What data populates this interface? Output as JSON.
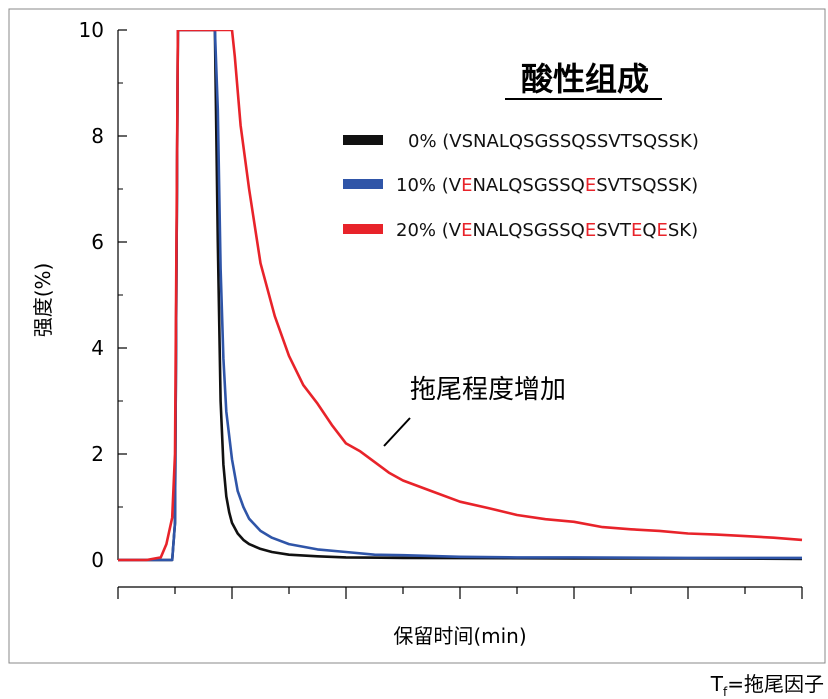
{
  "chart_data": {
    "type": "line",
    "title": "",
    "xlabel": "保留时间(min)",
    "ylabel": "强度(%)",
    "ylim": [
      0,
      10
    ],
    "xlim": [
      0,
      12
    ],
    "yticks": [
      "0",
      "2",
      "4",
      "6",
      "8",
      "10"
    ],
    "xticks_labeled": false,
    "grid": false,
    "legend": {
      "title": "酸性组成",
      "placement": "top-right",
      "entries": [
        {
          "pct": "0%",
          "pre": " (V",
          "parts": [
            {
              "t": "SNALQSGSSQSSVTSQSSK)",
              "hl": false
            }
          ],
          "color": "#111111"
        },
        {
          "pct": "10%",
          "pre": " (V",
          "parts": [
            {
              "t": "E",
              "hl": true
            },
            {
              "t": "NALQSGSSQ",
              "hl": false
            },
            {
              "t": "E",
              "hl": true
            },
            {
              "t": "SVTSQSSK)",
              "hl": false
            }
          ],
          "color": "#2f55a8"
        },
        {
          "pct": "20%",
          "pre": " (V",
          "parts": [
            {
              "t": "E",
              "hl": true
            },
            {
              "t": "NALQSGSSQ",
              "hl": false
            },
            {
              "t": "E",
              "hl": true
            },
            {
              "t": "SVT",
              "hl": false
            },
            {
              "t": "E",
              "hl": true
            },
            {
              "t": "Q",
              "hl": false
            },
            {
              "t": "E",
              "hl": true
            },
            {
              "t": "SK)",
              "hl": false
            }
          ],
          "color": "#e8232a"
        }
      ]
    },
    "highlight_color": "#e8232a",
    "annotation": "拖尾程度增加",
    "series": [
      {
        "name": "0%",
        "color": "#111111",
        "points": [
          [
            0,
            0
          ],
          [
            0.95,
            0
          ],
          [
            1.0,
            0.7
          ],
          [
            1.05,
            10
          ],
          [
            1.7,
            10
          ],
          [
            1.75,
            6.0
          ],
          [
            1.8,
            3.0
          ],
          [
            1.85,
            1.8
          ],
          [
            1.9,
            1.2
          ],
          [
            1.95,
            0.9
          ],
          [
            2.0,
            0.7
          ],
          [
            2.1,
            0.5
          ],
          [
            2.2,
            0.38
          ],
          [
            2.3,
            0.3
          ],
          [
            2.5,
            0.21
          ],
          [
            2.7,
            0.15
          ],
          [
            3.0,
            0.1
          ],
          [
            3.5,
            0.07
          ],
          [
            4.0,
            0.05
          ],
          [
            5.0,
            0.04
          ],
          [
            6,
            0.035
          ],
          [
            8,
            0.03
          ],
          [
            10,
            0.03
          ],
          [
            12,
            0.02
          ]
        ]
      },
      {
        "name": "10%",
        "color": "#2f55a8",
        "points": [
          [
            0,
            0
          ],
          [
            0.95,
            0
          ],
          [
            1.0,
            0.7
          ],
          [
            1.05,
            10
          ],
          [
            1.7,
            10
          ],
          [
            1.75,
            8.5
          ],
          [
            1.8,
            5.5
          ],
          [
            1.85,
            3.8
          ],
          [
            1.9,
            2.8
          ],
          [
            2.0,
            1.9
          ],
          [
            2.1,
            1.3
          ],
          [
            2.2,
            1.0
          ],
          [
            2.3,
            0.78
          ],
          [
            2.5,
            0.55
          ],
          [
            2.7,
            0.42
          ],
          [
            3.0,
            0.3
          ],
          [
            3.5,
            0.2
          ],
          [
            4.0,
            0.15
          ],
          [
            4.5,
            0.1
          ],
          [
            5.0,
            0.09
          ],
          [
            6.0,
            0.06
          ],
          [
            7.0,
            0.05
          ],
          [
            8.0,
            0.05
          ],
          [
            10.0,
            0.04
          ],
          [
            12,
            0.04
          ]
        ]
      },
      {
        "name": "20%",
        "color": "#e8232a",
        "points": [
          [
            0,
            0
          ],
          [
            0.5,
            0
          ],
          [
            0.75,
            0.05
          ],
          [
            0.85,
            0.3
          ],
          [
            0.95,
            0.8
          ],
          [
            1.0,
            2.0
          ],
          [
            1.05,
            10
          ],
          [
            2.0,
            10
          ],
          [
            2.05,
            9.5
          ],
          [
            2.15,
            8.2
          ],
          [
            2.3,
            7.0
          ],
          [
            2.5,
            5.6
          ],
          [
            2.75,
            4.6
          ],
          [
            3.0,
            3.85
          ],
          [
            3.25,
            3.3
          ],
          [
            3.5,
            2.95
          ],
          [
            3.75,
            2.55
          ],
          [
            4.0,
            2.2
          ],
          [
            4.25,
            2.05
          ],
          [
            4.5,
            1.85
          ],
          [
            4.75,
            1.65
          ],
          [
            5.0,
            1.5
          ],
          [
            5.5,
            1.3
          ],
          [
            6.0,
            1.1
          ],
          [
            6.5,
            0.98
          ],
          [
            7.0,
            0.85
          ],
          [
            7.5,
            0.77
          ],
          [
            8.0,
            0.72
          ],
          [
            8.5,
            0.62
          ],
          [
            9.0,
            0.58
          ],
          [
            9.5,
            0.55
          ],
          [
            10.0,
            0.5
          ],
          [
            10.5,
            0.48
          ],
          [
            11.0,
            0.45
          ],
          [
            11.5,
            0.42
          ],
          [
            12,
            0.38
          ]
        ]
      }
    ]
  },
  "footnote": {
    "t": "T",
    "sub": "f",
    "rest": "=拖尾因子"
  }
}
